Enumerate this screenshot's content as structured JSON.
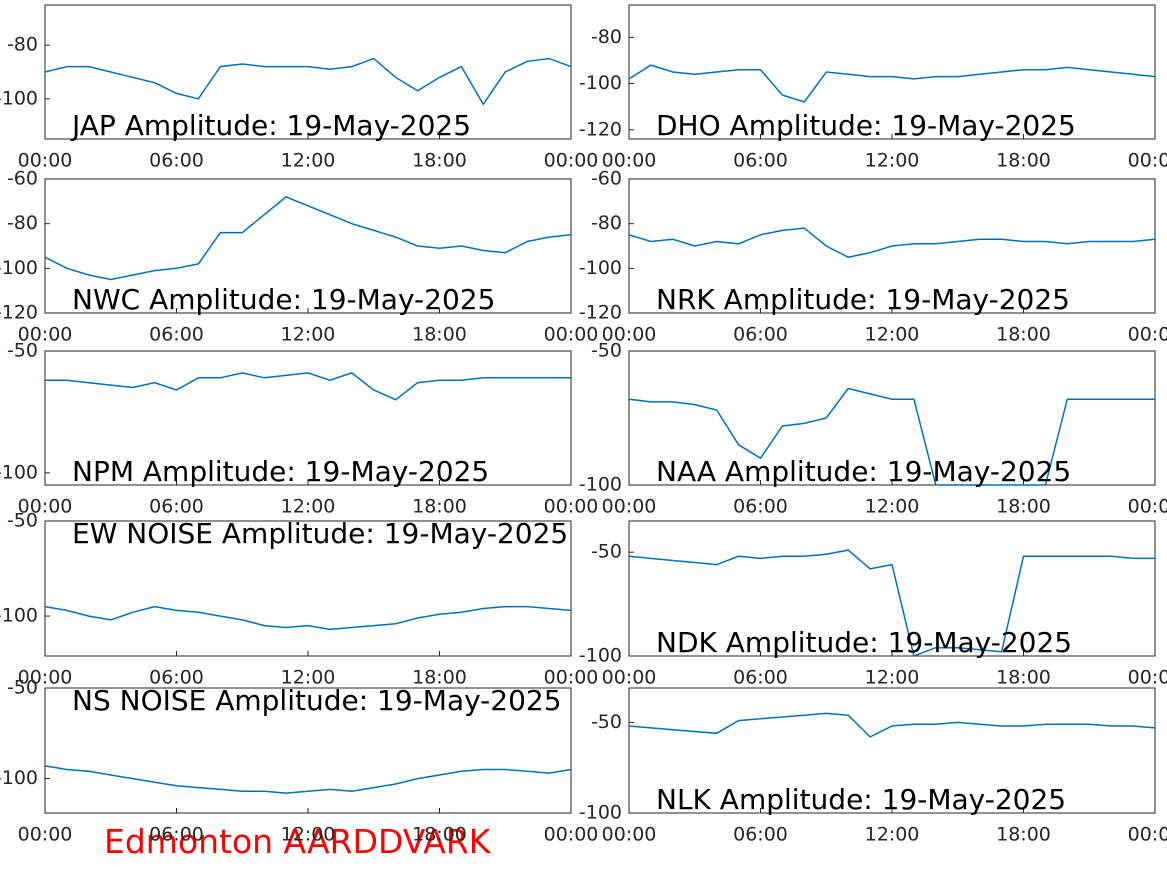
{
  "chart_data": [
    {
      "type": "line",
      "title": "JAP Amplitude: 19-May-2025",
      "color": "#0072bd",
      "x": [
        0,
        1,
        2,
        3,
        4,
        5,
        6,
        7,
        8,
        9,
        10,
        11,
        12,
        13,
        14,
        15,
        16,
        17,
        18,
        19,
        20,
        21,
        22,
        23,
        24
      ],
      "values": [
        -90,
        -88,
        -88,
        -90,
        -92,
        -94,
        -98,
        -100,
        -88,
        -87,
        -88,
        -88,
        -88,
        -89,
        -88,
        -85,
        -92,
        -97,
        -92,
        -88,
        -102,
        -90,
        -86,
        -85,
        -88
      ],
      "xlim": [
        0,
        24
      ],
      "xticks": [
        {
          "value": 0,
          "label": "00:00"
        },
        {
          "value": 6,
          "label": "06:00"
        },
        {
          "value": 12,
          "label": "12:00"
        },
        {
          "value": 18,
          "label": "18:00"
        },
        {
          "value": 24,
          "label": "00:00"
        }
      ],
      "ylim": [
        -115,
        -65
      ],
      "yticks": [
        -100,
        -80
      ]
    },
    {
      "type": "line",
      "title": "DHO Amplitude: 19-May-2025",
      "color": "#0072bd",
      "x": [
        0,
        1,
        2,
        3,
        4,
        5,
        6,
        7,
        8,
        9,
        10,
        11,
        12,
        13,
        14,
        15,
        16,
        17,
        18,
        19,
        20,
        21,
        22,
        23,
        24
      ],
      "values": [
        -98,
        -92,
        -95,
        -96,
        -95,
        -94,
        -94,
        -105,
        -108,
        -95,
        -96,
        -97,
        -97,
        -98,
        -97,
        -97,
        -96,
        -95,
        -94,
        -94,
        -93,
        -94,
        -95,
        -96,
        -97
      ],
      "xlim": [
        0,
        24
      ],
      "xticks": [
        {
          "value": 0,
          "label": "00:00"
        },
        {
          "value": 6,
          "label": "06:00"
        },
        {
          "value": 12,
          "label": "12:00"
        },
        {
          "value": 18,
          "label": "18:00"
        },
        {
          "value": 24,
          "label": "00:00"
        }
      ],
      "ylim": [
        -124,
        -66
      ],
      "yticks": [
        -120,
        -100,
        -80
      ]
    },
    {
      "type": "line",
      "title": "NWC Amplitude: 19-May-2025",
      "color": "#0072bd",
      "x": [
        0,
        1,
        2,
        3,
        4,
        5,
        6,
        7,
        8,
        9,
        10,
        11,
        12,
        13,
        14,
        15,
        16,
        17,
        18,
        19,
        20,
        21,
        22,
        23,
        24
      ],
      "values": [
        -95,
        -100,
        -103,
        -105,
        -103,
        -101,
        -100,
        -98,
        -84,
        -84,
        -76,
        -68,
        -72,
        -76,
        -80,
        -83,
        -86,
        -90,
        -91,
        -90,
        -92,
        -93,
        -88,
        -86,
        -85
      ],
      "xlim": [
        0,
        24
      ],
      "xticks": [
        {
          "value": 0,
          "label": "00:00"
        },
        {
          "value": 6,
          "label": "06:00"
        },
        {
          "value": 12,
          "label": "12:00"
        },
        {
          "value": 18,
          "label": "18:00"
        },
        {
          "value": 24,
          "label": "00:00"
        }
      ],
      "ylim": [
        -120,
        -60
      ],
      "yticks": [
        -120,
        -100,
        -80,
        -60
      ]
    },
    {
      "type": "line",
      "title": "NRK Amplitude: 19-May-2025",
      "color": "#0072bd",
      "x": [
        0,
        1,
        2,
        3,
        4,
        5,
        6,
        7,
        8,
        9,
        10,
        11,
        12,
        13,
        14,
        15,
        16,
        17,
        18,
        19,
        20,
        21,
        22,
        23,
        24
      ],
      "values": [
        -85,
        -88,
        -87,
        -90,
        -88,
        -89,
        -85,
        -83,
        -82,
        -90,
        -95,
        -93,
        -90,
        -89,
        -89,
        -88,
        -87,
        -87,
        -88,
        -88,
        -89,
        -88,
        -88,
        -88,
        -87
      ],
      "xlim": [
        0,
        24
      ],
      "xticks": [
        {
          "value": 0,
          "label": "00:00"
        },
        {
          "value": 6,
          "label": "06:00"
        },
        {
          "value": 12,
          "label": "12:00"
        },
        {
          "value": 18,
          "label": "18:00"
        },
        {
          "value": 24,
          "label": "00:00"
        }
      ],
      "ylim": [
        -120,
        -60
      ],
      "yticks": [
        -120,
        -100,
        -80,
        -60
      ]
    },
    {
      "type": "line",
      "title": "NPM Amplitude: 19-May-2025",
      "color": "#0072bd",
      "x": [
        0,
        1,
        2,
        3,
        4,
        5,
        6,
        7,
        8,
        9,
        10,
        11,
        12,
        13,
        14,
        15,
        16,
        17,
        18,
        19,
        20,
        21,
        22,
        23,
        24
      ],
      "values": [
        -62,
        -62,
        -63,
        -64,
        -65,
        -63,
        -66,
        -61,
        -61,
        -59,
        -61,
        -60,
        -59,
        -62,
        -59,
        -66,
        -70,
        -63,
        -62,
        -62,
        -61,
        -61,
        -61,
        -61,
        -61
      ],
      "xlim": [
        0,
        24
      ],
      "xticks": [
        {
          "value": 0,
          "label": "00:00"
        },
        {
          "value": 6,
          "label": "06:00"
        },
        {
          "value": 12,
          "label": "12:00"
        },
        {
          "value": 18,
          "label": "18:00"
        },
        {
          "value": 24,
          "label": "00:00"
        }
      ],
      "ylim": [
        -105,
        -50
      ],
      "yticks": [
        -100,
        -50
      ]
    },
    {
      "type": "line",
      "title": "NAA Amplitude: 19-May-2025",
      "color": "#0072bd",
      "x": [
        0,
        1,
        2,
        3,
        4,
        5,
        6,
        7,
        8,
        9,
        10,
        11,
        12,
        13,
        14,
        15,
        16,
        17,
        18,
        19,
        20,
        21,
        22,
        23,
        24
      ],
      "values": [
        -68,
        -69,
        -69,
        -70,
        -72,
        -85,
        -90,
        -78,
        -77,
        -75,
        -64,
        -66,
        -68,
        -68,
        -100,
        -100,
        -100,
        -100,
        -100,
        -100,
        -68,
        -68,
        -68,
        -68,
        -68
      ],
      "xlim": [
        0,
        24
      ],
      "xticks": [
        {
          "value": 0,
          "label": "00:00"
        },
        {
          "value": 6,
          "label": "06:00"
        },
        {
          "value": 12,
          "label": "12:00"
        },
        {
          "value": 18,
          "label": "18:00"
        },
        {
          "value": 24,
          "label": "00:00"
        }
      ],
      "ylim": [
        -100,
        -50
      ],
      "yticks": [
        -100,
        -50
      ]
    },
    {
      "type": "line",
      "title": "EW NOISE Amplitude: 19-May-2025",
      "title_top": true,
      "color": "#0072bd",
      "x": [
        0,
        1,
        2,
        3,
        4,
        5,
        6,
        7,
        8,
        9,
        10,
        11,
        12,
        13,
        14,
        15,
        16,
        17,
        18,
        19,
        20,
        21,
        22,
        23,
        24
      ],
      "values": [
        -95,
        -97,
        -100,
        -102,
        -98,
        -95,
        -97,
        -98,
        -100,
        -102,
        -105,
        -106,
        -105,
        -107,
        -106,
        -105,
        -104,
        -101,
        -99,
        -98,
        -96,
        -95,
        -95,
        -96,
        -97
      ],
      "xlim": [
        0,
        24
      ],
      "xticks": [
        {
          "value": 0,
          "label": "00:00"
        },
        {
          "value": 6,
          "label": "06:00"
        },
        {
          "value": 12,
          "label": "12:00"
        },
        {
          "value": 18,
          "label": "18:00"
        },
        {
          "value": 24,
          "label": "00:00"
        }
      ],
      "ylim": [
        -121,
        -50
      ],
      "yticks": [
        -100,
        -50
      ]
    },
    {
      "type": "line",
      "title": "NDK Amplitude: 19-May-2025",
      "color": "#0072bd",
      "x": [
        0,
        1,
        2,
        3,
        4,
        5,
        6,
        7,
        8,
        9,
        10,
        11,
        12,
        13,
        14,
        15,
        16,
        17,
        18,
        19,
        20,
        21,
        22,
        23,
        24
      ],
      "values": [
        -52,
        -53,
        -54,
        -55,
        -56,
        -52,
        -53,
        -52,
        -52,
        -51,
        -49,
        -58,
        -56,
        -100,
        -96,
        -96,
        -97,
        -98,
        -52,
        -52,
        -52,
        -52,
        -52,
        -53,
        -53
      ],
      "xlim": [
        0,
        24
      ],
      "xticks": [
        {
          "value": 0,
          "label": "00:00"
        },
        {
          "value": 6,
          "label": "06:00"
        },
        {
          "value": 12,
          "label": "12:00"
        },
        {
          "value": 18,
          "label": "18:00"
        },
        {
          "value": 24,
          "label": "00:00"
        }
      ],
      "ylim": [
        -100,
        -35
      ],
      "yticks": [
        -100,
        -50
      ]
    },
    {
      "type": "line",
      "title": "NS NOISE Amplitude: 19-May-2025",
      "title_top": true,
      "color": "#0072bd",
      "x": [
        0,
        1,
        2,
        3,
        4,
        5,
        6,
        7,
        8,
        9,
        10,
        11,
        12,
        13,
        14,
        15,
        16,
        17,
        18,
        19,
        20,
        21,
        22,
        23,
        24
      ],
      "values": [
        -93,
        -95,
        -96,
        -98,
        -100,
        -102,
        -104,
        -105,
        -106,
        -107,
        -107,
        -108,
        -107,
        -106,
        -107,
        -105,
        -103,
        -100,
        -98,
        -96,
        -95,
        -95,
        -96,
        -97,
        -95
      ],
      "xlim": [
        0,
        24
      ],
      "xticks": [
        {
          "value": 0,
          "label": "00:00"
        },
        {
          "value": 6,
          "label": "06:00"
        },
        {
          "value": 12,
          "label": "12:00"
        },
        {
          "value": 18,
          "label": "18:00"
        },
        {
          "value": 24,
          "label": "00:00"
        }
      ],
      "ylim": [
        -119,
        -50
      ],
      "yticks": [
        -100,
        -50
      ]
    },
    {
      "type": "line",
      "title": "NLK Amplitude: 19-May-2025",
      "color": "#0072bd",
      "x": [
        0,
        1,
        2,
        3,
        4,
        5,
        6,
        7,
        8,
        9,
        10,
        11,
        12,
        13,
        14,
        15,
        16,
        17,
        18,
        19,
        20,
        21,
        22,
        23,
        24
      ],
      "values": [
        -52,
        -53,
        -54,
        -55,
        -56,
        -49,
        -48,
        -47,
        -46,
        -45,
        -46,
        -58,
        -52,
        -51,
        -51,
        -50,
        -51,
        -52,
        -52,
        -51,
        -51,
        -51,
        -52,
        -52,
        -53
      ],
      "xlim": [
        0,
        24
      ],
      "xticks": [
        {
          "value": 0,
          "label": "00:00"
        },
        {
          "value": 6,
          "label": "06:00"
        },
        {
          "value": 12,
          "label": "12:00"
        },
        {
          "value": 18,
          "label": "18:00"
        },
        {
          "value": 24,
          "label": "00:00"
        }
      ],
      "ylim": [
        -100,
        -31
      ],
      "yticks": [
        -100,
        -50
      ]
    }
  ],
  "footer": "Edmonton AARDDVARK"
}
